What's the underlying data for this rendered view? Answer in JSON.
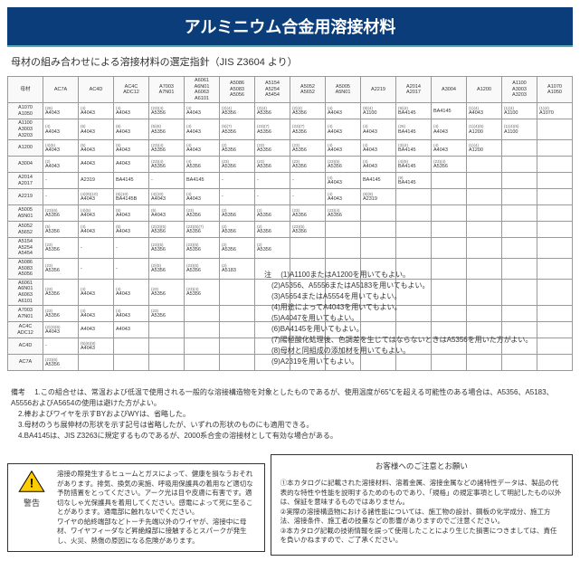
{
  "title": "アルミニウム合金用溶接材料",
  "subtitle": "母材の組み合わせによる溶接材料の選定指針（JIS Z3604 より）",
  "hdr": [
    "母材",
    "AC7A",
    "AC4D",
    "AC4C\nADC12",
    "A7003\nA7N01",
    "A6061\nA6N01\nA6063\nA6101",
    "A5086\nA5083\nA5056",
    "A5154\nA5254\nA5454",
    "A5052\nA5652",
    "A5005\nA5N01",
    "A2219",
    "A2014\nA2017",
    "A3004",
    "A1200",
    "A1100\nA3003\nA3203",
    "A1070\nA1050"
  ],
  "rows": [
    [
      "A1070\nA1050",
      "(25)\nA4043",
      "(4)\nA4043",
      "(4)\nA4043",
      "(23)(4)\nA5356",
      "(4)\nA4043",
      "(2)(4)\nA5356",
      "(2)(4)\nA5356",
      "(2)(4)\nA5356",
      "(4)\nA4043",
      "(9)(4)\nA1100",
      "(9)(4)\nBA4145",
      "BA4145",
      "(1)(4)\nA4043",
      "(1)(4)\nA1100",
      "(1)(4)\nA1070"
    ],
    [
      "A1100\nA3003\nA3203",
      "(4)\nA4043",
      "(6)\nA4043",
      "(6)\nA4043",
      "(5)(6)\nA5356",
      "(4)\nA4043",
      "(5)(7)\nA5356",
      "(23)(7)\nA5356",
      "(23)(7)\nA5356",
      "(4)\nA4043",
      "(4)\nA4043",
      "(25)\nBA4145",
      "(4)\nA4043",
      "(1)(4)(5)\nA1200",
      "(1)(4)(5)\nA1100",
      ""
    ],
    [
      "A1200",
      "(4)(5)\nA4043",
      "(5)\nA4043",
      "(5)\nA4043",
      "(23)(4)\nA5356",
      "(4)\nA4043",
      "(2)\nA5356",
      "(23)\nA5356",
      "(23)\nA5356",
      "(4)\nA4043",
      "(4)\nA4043",
      "(3)(4)\nBA4145",
      "(4)\nA4043",
      "(1)(4)\nA1200",
      "",
      ""
    ],
    [
      "A3004",
      "(2)\nA4043",
      "A4043",
      "A4043",
      "(23)(4)\nA5356",
      "(4)\nA5356",
      "(23)\nA5356",
      "(23)\nA5356",
      "(23)\nA5356",
      "(23)(5)\nA5356",
      "(4)\nA4043",
      "(4)(5)\nBA4145",
      "(23)(4)\nA5356",
      "",
      "",
      ""
    ],
    [
      "A2014\nA2017",
      "-",
      "A2319",
      "BA4145",
      "-",
      "BA4145",
      "-",
      "-",
      "-",
      "(4)\nA4043",
      "BA4145",
      "(9)\nBA4145",
      "",
      "",
      "",
      ""
    ],
    [
      "A2219",
      "-",
      "(4)(9)(10)\nA4043",
      "(6)(10)\nBA4145B",
      "(4)(10)\nA4043",
      "(4)\nA4043",
      "-",
      "-",
      "-",
      "(4)\nA4043",
      "(8)(9)\nA2319",
      "",
      "",
      "",
      "",
      ""
    ],
    [
      "A5005\nA5N01",
      "(23)(6)\nA5356",
      "(4)(5)\nA4043",
      "(5)\nA4043",
      "(5)\nA4043",
      "(23)\nA5356",
      "(2)\nA5356",
      "(2)\nA5356",
      "(23)\nA5356",
      "(23)(4)\nA5356",
      "",
      "",
      "",
      "",
      "",
      ""
    ],
    [
      "A5052\nA5652",
      "(5)\nA5356",
      "(4)\nA4043",
      "(5)\nA4043",
      "(2)(3)(5)\nA5356",
      "(23)(5)(7)\nA5356",
      "(2)\nA5356",
      "(2)\nA5356",
      "(23)(5)\nA5356",
      "",
      "",
      "",
      "",
      "",
      "",
      ""
    ],
    [
      "A5154\nA5254\nA5454",
      "(23)\nA5356",
      "-",
      "-",
      "(23)(5)\nA5356",
      "(23)(5)\nA5356",
      "(2)\nA5356",
      "(2)\nA5356",
      "",
      "",
      "",
      "",
      "",
      "",
      "",
      ""
    ],
    [
      "A5086\nA5083\nA5056",
      "(23)\nA5356",
      "-",
      "-",
      "(2)(5)\nA5356",
      "(23)(5)\nA5356",
      "(2)\nA5183",
      "",
      "",
      "",
      "",
      "",
      "",
      "",
      "",
      ""
    ],
    [
      "A6061\nA6N01\nA6063\nA6101",
      "(23)\nA5356",
      "(4)\nA4043",
      "(4)\nA4043",
      "(23)\nA5356",
      "(23)(4)\nA5356",
      "",
      "",
      "",
      "",
      "",
      "",
      "",
      "",
      "",
      ""
    ],
    [
      "A7003\nA7N01",
      "(23)\nA5356",
      "(4)\nA4043",
      "(4)\nA4043",
      "(23)\nA5356",
      "",
      "",
      "",
      "",
      "",
      "",
      "",
      "",
      "",
      "",
      ""
    ],
    [
      "AC4C\nADC12",
      "(2)(3)(6)\nA4043",
      "A4043",
      "A4043",
      "",
      "",
      "",
      "",
      "",
      "",
      "",
      "",
      "",
      "",
      "",
      ""
    ],
    [
      "AC4D",
      "-",
      "(5)(6)(8)\nA4043",
      "",
      "",
      "",
      "",
      "",
      "",
      "",
      "",
      "",
      "",
      "",
      "",
      ""
    ],
    [
      "AC7A",
      "(23)(6)\nA5356",
      "",
      "",
      "",
      "",
      "",
      "",
      "",
      "",
      "",
      "",
      "",
      "",
      "",
      ""
    ]
  ],
  "noteLbl": "注",
  "notes": [
    "(1)A1100またはA1200を用いてもよい。",
    "(2)A5356、A5556またはA5183を用いてもよい。",
    "(3)A5654またはA5554を用いてもよい。",
    "(4)用途によってA4043を用いてもよい。",
    "(5)A4047を用いてもよい。",
    "(6)BA4145を用いてもよい。",
    "(7)陽極酸化処理後、色調差を生じてはならないときはA5356を用いた方がよい。",
    "(8)母材と同組成の添加材を用いてもよい。",
    "(9)A2319を用いてもよい。"
  ],
  "bkLbl": "備考",
  "bk": [
    "1.この組合せは、常温および低温で使用される一般的な溶接構造物を対象としたものであるが、使用温度が65℃を超える可能性のある場合は、A5356、A5183、A5556およびA5654の使用は避けた方がよい。",
    "2.棒およびワイヤを示すBYおよびWYは、省略した。",
    "3.母材のうち展伸材の形状を示す記号は省略したが、いずれの形状のものにも適用できる。",
    "4.BA4145は、JIS Z3263に規定するものであるが、2000系合金の溶接材として有効な場合がある。"
  ],
  "warnL": "警告",
  "warnT": "溶接の際発生するヒュームとガスによって、健康を損なうおそれがあります。排気、換気の実施、呼吸用保護具の着用など適切な予防措置をとってください。アーク光は目や皮膚に有害です。適切なしゃ光保護具を着用してください。感電によって死に至ることがあります。通電部に触れないでください。\nワイヤの給終端部などトーチ先端以外のワイヤが、溶接中に母材、ワイヤフィーダなど昇絶線部に接触するとスパークが発生し、火災、熱傷の原因になる危険があります。",
  "infoT": "お客様へのご注意とお願い",
  "info": "①本カタログに記載された溶接材料、溶着金属、溶接金属などの諸特性データは、製品の代表的な特性や性能を説明するためのものであり、「規格」の規定事項として明記したもの以外は、保証を意味するものではありません。\n②実際の溶接構造物における諸性能については、施工物の設計、鋼板の化学成分、施工方法、溶接条件、施工者の技量などの影響がありますのでご注意ください。\n③本カタログ記載の技術情報を誤って使用したことにより生じた損害につきましては、責任を負いかねますので、ご了承ください。",
  "colors": {
    "hdr": "#0a3d7a",
    "acc": "#5ab"
  }
}
